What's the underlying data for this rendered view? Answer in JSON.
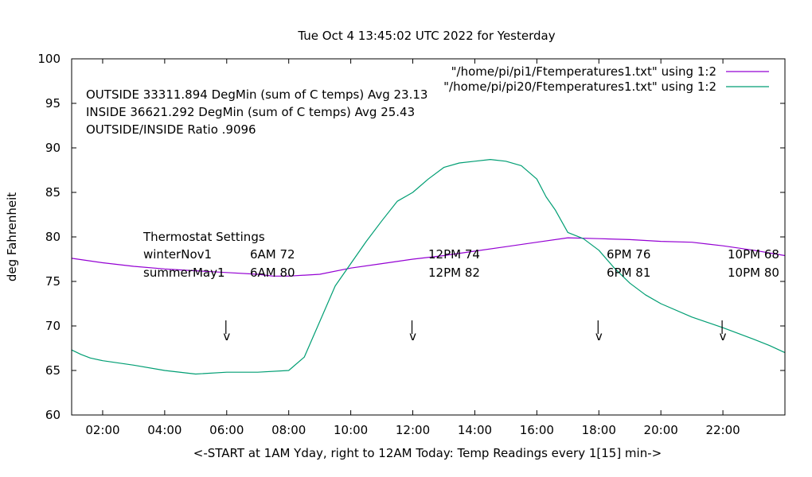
{
  "chart_data": {
    "type": "line",
    "title": "Tue Oct  4 13:45:02 UTC 2022 for Yesterday",
    "xlabel": "<-START at 1AM Yday, right to 12AM Today:  Temp Readings every 1[15] min->",
    "ylabel": "deg Fahrenheit",
    "xlim": [
      1,
      24
    ],
    "ylim": [
      60,
      100
    ],
    "x_ticks": [
      "02:00",
      "04:00",
      "06:00",
      "08:00",
      "10:00",
      "12:00",
      "14:00",
      "16:00",
      "18:00",
      "20:00",
      "22:00"
    ],
    "y_ticks": [
      "60",
      "65",
      "70",
      "75",
      "80",
      "85",
      "90",
      "95",
      "100"
    ],
    "grid": false,
    "legend_position": "top-right",
    "series": [
      {
        "name": "\"/home/pi/pi1/Ftemperatures1.txt\" using 1:2",
        "color": "#9400d3",
        "x": [
          1,
          2,
          3,
          4,
          5,
          6,
          7,
          7.5,
          8,
          9,
          10,
          11,
          12,
          13,
          14,
          15,
          16,
          17,
          18,
          19,
          20,
          21,
          22,
          23,
          24
        ],
        "y": [
          77.6,
          77.1,
          76.7,
          76.4,
          76.2,
          76.0,
          75.8,
          75.6,
          75.6,
          75.8,
          76.5,
          77.0,
          77.5,
          77.9,
          78.4,
          78.9,
          79.4,
          79.9,
          79.8,
          79.7,
          79.5,
          79.4,
          79.0,
          78.5,
          77.9
        ]
      },
      {
        "name": "\"/home/pi/pi20/Ftemperatures1.txt\" using 1:2",
        "color": "#009e73",
        "x": [
          1,
          1.3,
          1.6,
          2,
          3,
          4,
          5,
          6,
          7,
          8,
          8.5,
          9,
          9.5,
          10,
          10.5,
          11,
          11.5,
          12,
          12.5,
          13,
          13.5,
          14,
          14.5,
          15,
          15.5,
          16,
          16.3,
          16.6,
          17,
          17.5,
          18,
          18.5,
          19,
          19.5,
          20,
          21,
          22,
          23,
          23.5,
          24
        ],
        "y": [
          67.3,
          66.8,
          66.4,
          66.1,
          65.6,
          65.0,
          64.6,
          64.8,
          64.8,
          65.0,
          66.5,
          70.5,
          74.5,
          77.0,
          79.5,
          81.8,
          84.0,
          85.0,
          86.5,
          87.8,
          88.3,
          88.5,
          88.7,
          88.5,
          88.0,
          86.5,
          84.5,
          83.0,
          80.5,
          79.8,
          78.5,
          76.5,
          74.8,
          73.5,
          72.5,
          71.0,
          69.8,
          68.5,
          67.8,
          67.0
        ]
      }
    ],
    "annotations": {
      "stats": [
        "OUTSIDE 33311.894 DegMin (sum of C temps) Avg 23.13",
        "INSIDE 36621.292 DegMin (sum of C temps) Avg 25.43",
        "OUTSIDE/INSIDE Ratio .9096"
      ],
      "thermostat": {
        "heading": "Thermostat Settings",
        "rows": [
          {
            "name": "winterNov1",
            "settings": [
              "6AM 72",
              "12PM 74",
              "6PM 76",
              "10PM 68"
            ]
          },
          {
            "name": "summerMay1",
            "settings": [
              "6AM 80",
              "12PM 82",
              "6PM 81",
              "10PM 80"
            ]
          }
        ]
      },
      "arrows": [
        {
          "x": 6,
          "label": "v"
        },
        {
          "x": 12,
          "label": "v"
        },
        {
          "x": 18,
          "label": "v"
        },
        {
          "x": 22,
          "label": "v"
        }
      ]
    }
  }
}
